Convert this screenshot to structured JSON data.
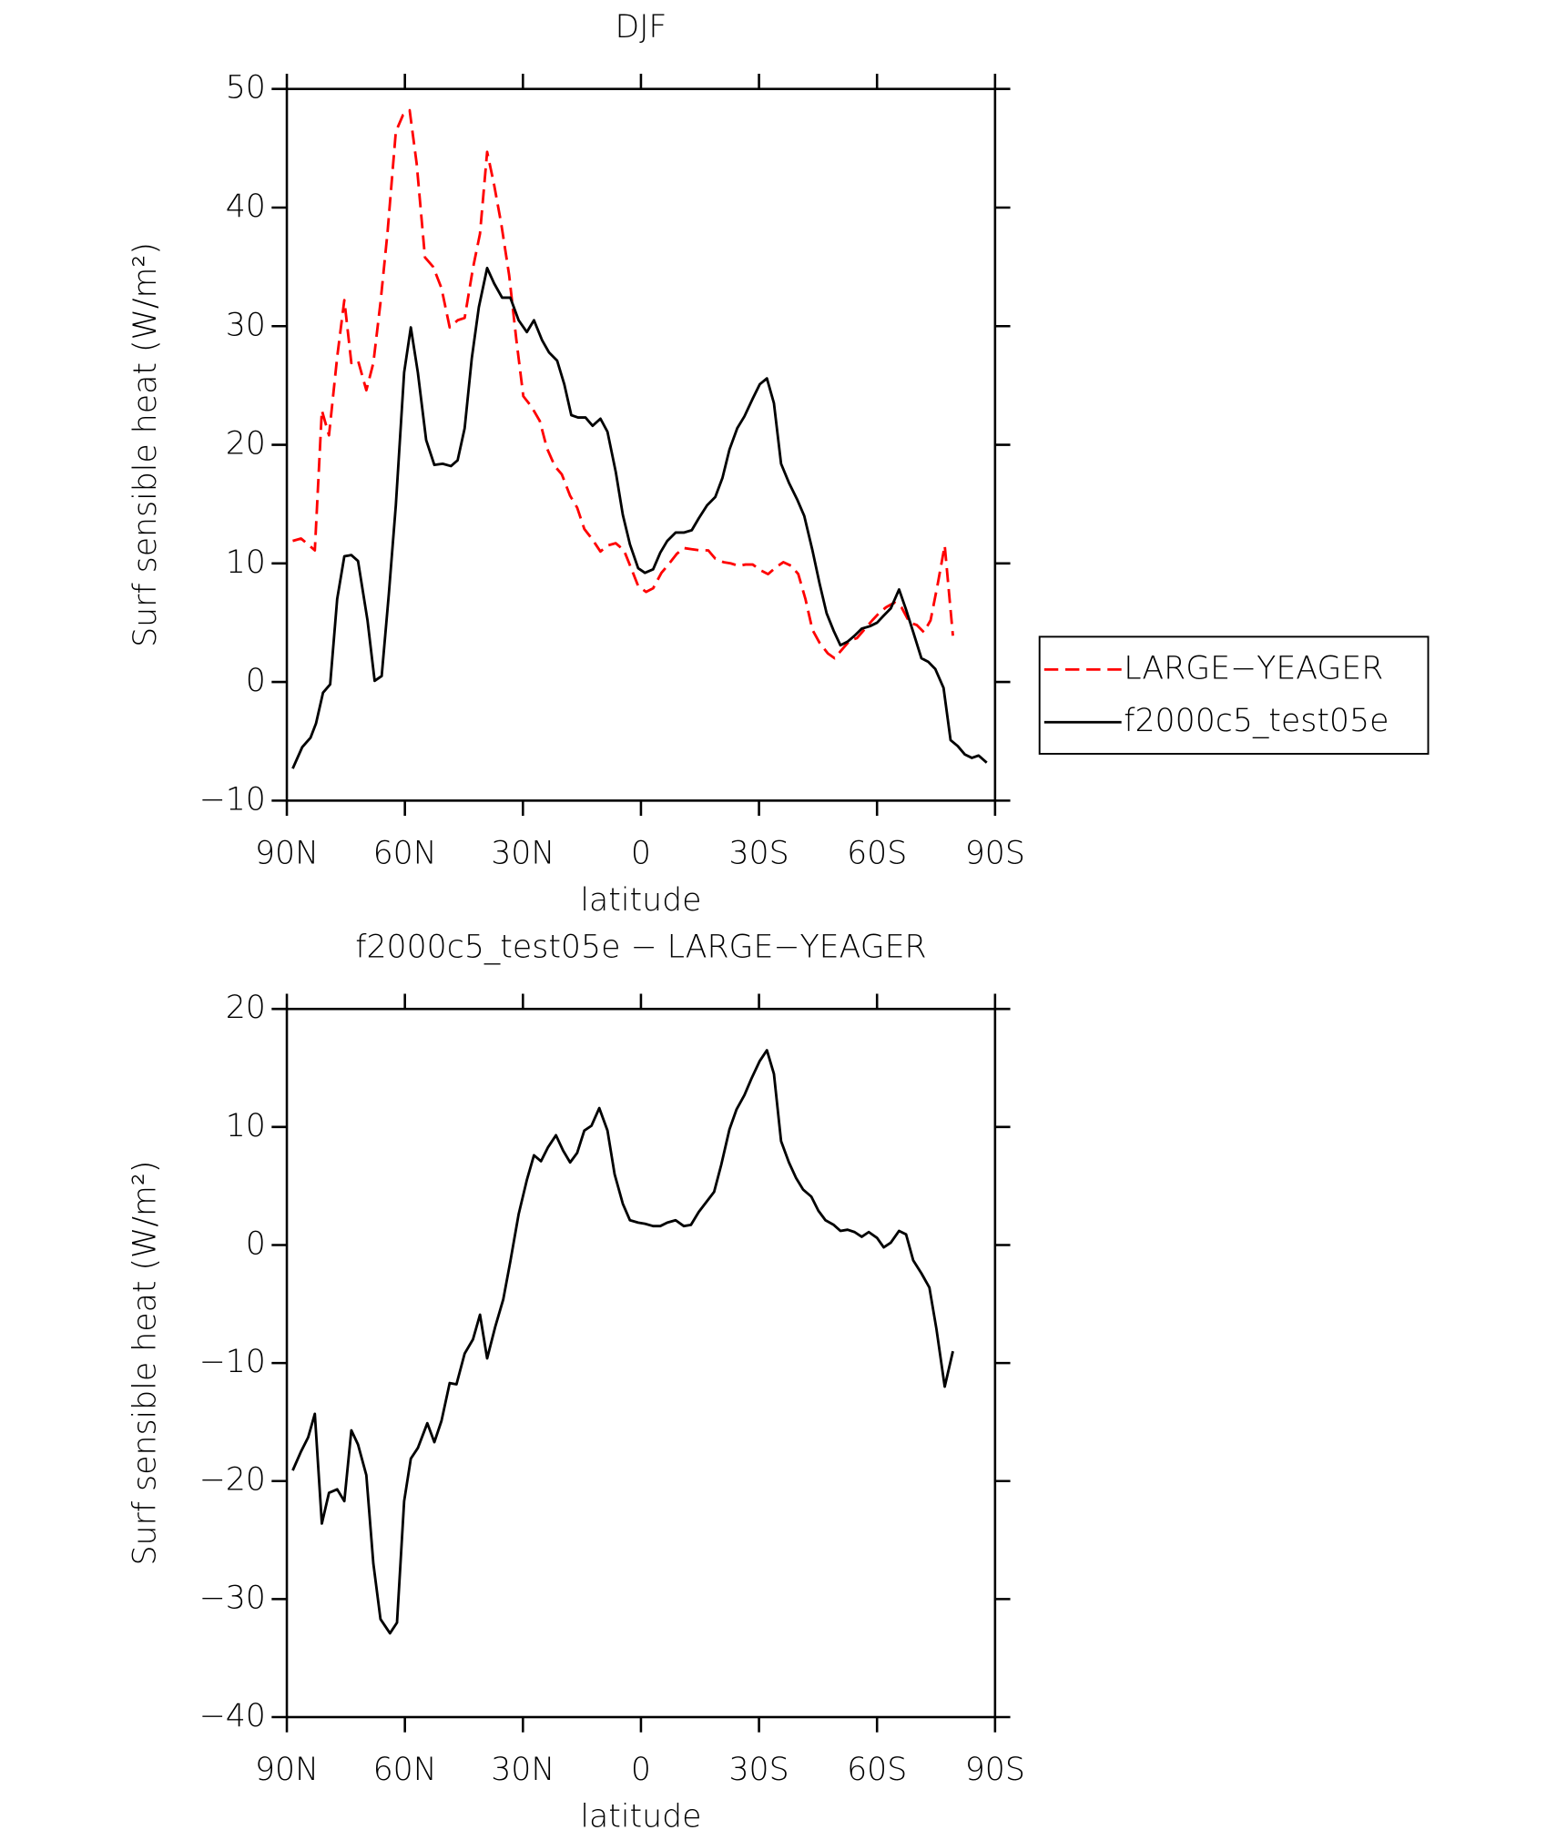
{
  "chart_data": [
    {
      "type": "line",
      "title": "DJF",
      "x_label": "latitude",
      "y_label": "Surf sensible heat (W/m²)",
      "xlim": [
        90,
        -90
      ],
      "ylim": [
        -10,
        50
      ],
      "xticks": [
        {
          "value": 90,
          "label": "90N"
        },
        {
          "value": 60,
          "label": "60N"
        },
        {
          "value": 30,
          "label": "30N"
        },
        0,
        {
          "value": -30,
          "label": "30S"
        },
        {
          "value": -60,
          "label": "60S"
        },
        {
          "value": -90,
          "label": "90S"
        }
      ],
      "yticks": [
        {
          "value": -10,
          "label": "−10"
        },
        0,
        10,
        20,
        30,
        40,
        50
      ],
      "legend": "right",
      "series": [
        {
          "name": "LARGE−YEAGER",
          "color": "#ff0000",
          "line_style": "dashed",
          "x": [
            88.5,
            86.4,
            84.6,
            82.9,
            81.1,
            79.3,
            77.2,
            75.4,
            73.6,
            71.9,
            69.8,
            68.0,
            66.2,
            64.4,
            62.3,
            60.5,
            58.8,
            57.0,
            54.9,
            52.8,
            50.7,
            48.6,
            46.6,
            44.8,
            42.7,
            40.9,
            39.1,
            37.3,
            35.5,
            33.5,
            31.7,
            29.9,
            27.8,
            25.7,
            23.9,
            21.9,
            20.1,
            18.0,
            16.2,
            14.4,
            12.3,
            10.3,
            8.5,
            6.4,
            4.3,
            2.5,
            0.7,
            -1.3,
            -3.1,
            -5.2,
            -7.0,
            -9.1,
            -10.9,
            -12.9,
            -15.0,
            -17.1,
            -18.9,
            -21.0,
            -22.8,
            -24.8,
            -26.6,
            -28.4,
            -30.5,
            -32.3,
            -34.4,
            -36.2,
            -38.2,
            -40.0,
            -41.8,
            -43.6,
            -45.4,
            -47.5,
            -49.2,
            -51.0,
            -53.1,
            -54.9,
            -56.7,
            -58.8,
            -60.5,
            -62.3,
            -64.4,
            -66.2,
            -68.3,
            -70.1,
            -71.9,
            -73.6,
            -75.4,
            -77.2,
            -79.3
          ],
          "values": [
            11.9,
            12.1,
            11.6,
            11.1,
            22.9,
            20.8,
            27.4,
            32.2,
            26.9,
            27.1,
            24.6,
            26.9,
            32.0,
            37.9,
            46.4,
            47.8,
            48.2,
            43.7,
            35.8,
            35.0,
            33.2,
            29.9,
            30.5,
            30.7,
            34.9,
            37.8,
            44.7,
            41.9,
            38.6,
            34.3,
            28.9,
            24.1,
            23.2,
            22.0,
            19.7,
            18.2,
            17.5,
            15.7,
            14.7,
            12.9,
            12.0,
            11.0,
            11.5,
            11.7,
            11.1,
            9.6,
            8.1,
            7.6,
            7.9,
            9.2,
            9.9,
            10.8,
            11.3,
            11.2,
            11.1,
            11.1,
            10.4,
            10.1,
            10.0,
            9.8,
            9.9,
            9.9,
            9.4,
            9.1,
            9.7,
            10.1,
            9.8,
            9.1,
            7.0,
            4.4,
            3.3,
            2.4,
            2.0,
            2.7,
            3.5,
            3.7,
            4.4,
            5.2,
            5.8,
            6.3,
            6.7,
            6.3,
            5.0,
            4.8,
            4.2,
            5.2,
            8.2,
            11.5,
            3.9
          ]
        },
        {
          "name": "f2000c5_test05e",
          "color": "#000000",
          "line_style": "solid",
          "x": [
            88.5,
            86.1,
            84.0,
            82.6,
            80.8,
            79.0,
            77.2,
            75.4,
            73.6,
            71.9,
            69.5,
            67.7,
            65.9,
            64.1,
            62.3,
            60.2,
            58.5,
            56.7,
            54.6,
            52.5,
            50.4,
            48.3,
            46.6,
            44.8,
            43.0,
            41.2,
            39.1,
            37.3,
            35.3,
            33.2,
            31.1,
            29.0,
            27.2,
            25.1,
            23.4,
            21.3,
            19.5,
            17.7,
            16.0,
            14.1,
            12.3,
            10.3,
            8.5,
            6.4,
            4.6,
            2.8,
            0.7,
            -1.0,
            -3.1,
            -4.9,
            -6.7,
            -8.8,
            -10.9,
            -12.9,
            -14.7,
            -16.8,
            -18.9,
            -20.7,
            -22.5,
            -24.5,
            -26.3,
            -28.4,
            -30.2,
            -32.0,
            -33.8,
            -35.6,
            -37.6,
            -39.7,
            -41.5,
            -43.6,
            -45.4,
            -47.2,
            -49.0,
            -50.7,
            -52.5,
            -54.3,
            -56.1,
            -58.2,
            -60.0,
            -61.7,
            -63.5,
            -65.6,
            -67.4,
            -69.2,
            -71.3,
            -73.0,
            -74.8,
            -76.9,
            -78.7,
            -80.5,
            -82.3,
            -84.1,
            -85.8,
            -87.9
          ],
          "values": [
            -7.3,
            -5.5,
            -4.7,
            -3.5,
            -0.9,
            -0.2,
            7.0,
            10.6,
            10.7,
            10.2,
            5.2,
            0.1,
            0.5,
            7.4,
            14.9,
            26.1,
            29.9,
            26.1,
            20.4,
            18.3,
            18.4,
            18.2,
            18.7,
            21.4,
            27.3,
            31.6,
            34.9,
            33.6,
            32.4,
            32.4,
            30.5,
            29.5,
            30.5,
            28.8,
            27.8,
            27.1,
            25.1,
            22.5,
            22.3,
            22.3,
            21.6,
            22.2,
            21.1,
            17.7,
            14.1,
            11.6,
            9.6,
            9.2,
            9.5,
            10.9,
            11.9,
            12.6,
            12.6,
            12.8,
            13.8,
            14.9,
            15.6,
            17.2,
            19.6,
            21.4,
            22.4,
            23.9,
            25.1,
            25.6,
            23.5,
            18.4,
            16.8,
            15.4,
            14.0,
            11.1,
            8.3,
            5.8,
            4.3,
            3.1,
            3.4,
            3.9,
            4.5,
            4.7,
            5.0,
            5.6,
            6.2,
            7.8,
            6.1,
            4.2,
            2.0,
            1.7,
            1.1,
            -0.5,
            -4.9,
            -5.4,
            -6.1,
            -6.4,
            -6.2,
            -6.8
          ]
        }
      ]
    },
    {
      "type": "line",
      "title": "f2000c5_test05e − LARGE−YEAGER",
      "x_label": "latitude",
      "y_label": "Surf sensible heat (W/m²)",
      "xlim": [
        90,
        -90
      ],
      "ylim": [
        -40,
        20
      ],
      "xticks": [
        {
          "value": 90,
          "label": "90N"
        },
        {
          "value": 60,
          "label": "60N"
        },
        {
          "value": 30,
          "label": "30N"
        },
        0,
        {
          "value": -30,
          "label": "30S"
        },
        {
          "value": -60,
          "label": "60S"
        },
        {
          "value": -90,
          "label": "90S"
        }
      ],
      "yticks": [
        {
          "value": -40,
          "label": "−40"
        },
        {
          "value": -30,
          "label": "−30"
        },
        {
          "value": -20,
          "label": "−20"
        },
        {
          "value": -10,
          "label": "−10"
        },
        0,
        10,
        20
      ],
      "series": [
        {
          "color": "#000000",
          "line_style": "solid",
          "x": [
            88.5,
            86.4,
            84.6,
            82.9,
            81.1,
            79.3,
            77.2,
            75.4,
            73.6,
            71.9,
            69.8,
            68.0,
            66.2,
            63.8,
            62.0,
            60.2,
            58.5,
            56.7,
            54.3,
            52.5,
            50.7,
            48.6,
            46.9,
            44.8,
            42.7,
            40.9,
            39.1,
            37.0,
            35.0,
            33.2,
            31.1,
            29.0,
            27.2,
            25.4,
            23.6,
            21.6,
            19.8,
            18.0,
            16.2,
            14.4,
            12.6,
            10.6,
            8.5,
            6.7,
            4.6,
            2.8,
            0.7,
            -1.0,
            -3.1,
            -4.9,
            -6.7,
            -8.8,
            -10.9,
            -12.7,
            -14.7,
            -16.5,
            -18.6,
            -20.4,
            -22.5,
            -24.3,
            -26.3,
            -28.1,
            -30.2,
            -32.0,
            -33.8,
            -35.6,
            -37.6,
            -39.4,
            -41.2,
            -43.3,
            -45.1,
            -46.9,
            -49.0,
            -50.7,
            -52.5,
            -54.3,
            -56.1,
            -57.9,
            -60.0,
            -61.7,
            -63.5,
            -65.6,
            -67.4,
            -69.2,
            -71.3,
            -73.3,
            -75.1,
            -77.2,
            -79.3
          ],
          "values": [
            -19.1,
            -17.5,
            -16.3,
            -14.3,
            -23.6,
            -21.0,
            -20.7,
            -21.7,
            -15.7,
            -16.9,
            -19.5,
            -27.0,
            -31.7,
            -32.9,
            -32.0,
            -21.7,
            -18.1,
            -17.2,
            -15.1,
            -16.7,
            -14.9,
            -11.7,
            -11.8,
            -9.2,
            -8.0,
            -5.9,
            -9.6,
            -6.9,
            -4.6,
            -1.4,
            2.6,
            5.5,
            7.6,
            7.1,
            8.3,
            9.3,
            8.0,
            7.0,
            7.8,
            9.7,
            10.1,
            11.6,
            9.7,
            6.0,
            3.5,
            2.1,
            1.9,
            1.8,
            1.6,
            1.6,
            1.9,
            2.1,
            1.6,
            1.7,
            2.8,
            3.6,
            4.5,
            6.8,
            9.8,
            11.5,
            12.7,
            14.1,
            15.6,
            16.5,
            14.5,
            8.8,
            7.0,
            5.7,
            4.7,
            4.1,
            2.9,
            2.1,
            1.7,
            1.2,
            1.3,
            1.1,
            0.7,
            1.1,
            0.6,
            -0.2,
            0.2,
            1.2,
            0.9,
            -1.3,
            -2.4,
            -3.6,
            -7.1,
            -12.0,
            -9.0
          ]
        }
      ]
    }
  ]
}
